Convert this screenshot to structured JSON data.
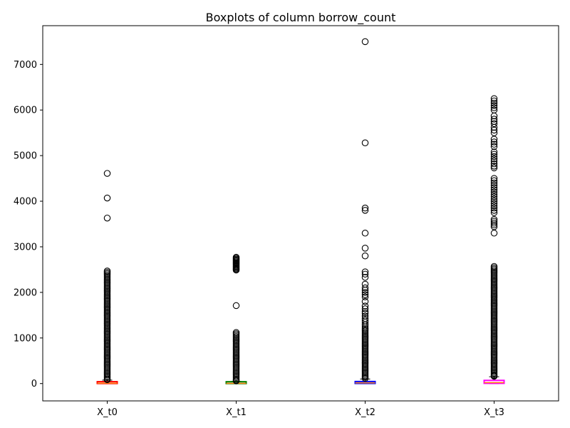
{
  "chart_data": {
    "type": "box",
    "title": "Boxplots of column borrow_count",
    "xlabel": "",
    "ylabel": "",
    "categories": [
      "X_t0",
      "X_t1",
      "X_t2",
      "X_t3"
    ],
    "ylim": [
      -380,
      7850
    ],
    "yticks": [
      0,
      1000,
      2000,
      3000,
      4000,
      5000,
      6000,
      7000
    ],
    "grid": false,
    "boxes": [
      {
        "name": "X_t0",
        "color": "#ff0000",
        "min": 0,
        "q1": 2,
        "median": 10,
        "q3": 30,
        "max": 75,
        "outliers": [
          4610,
          4070,
          3630,
          2470,
          2440,
          2410,
          2380,
          2350,
          2320,
          2290,
          2260,
          2230,
          2200,
          2170,
          2140,
          2110,
          2080,
          2050,
          2020,
          1990,
          1960,
          1930,
          1900,
          1870,
          1840,
          1810,
          1780,
          1750,
          1720,
          1690,
          1660,
          1630,
          1600,
          1570,
          1540,
          1510,
          1480,
          1450,
          1420,
          1390,
          1360,
          1330,
          1300,
          1270,
          1240,
          1210,
          1180,
          1150,
          1120,
          1090,
          1060,
          1030,
          1000,
          970,
          940,
          910,
          880,
          850,
          820,
          790,
          760,
          730,
          700,
          670,
          640,
          610,
          580,
          550,
          520,
          490,
          460,
          430,
          400,
          370,
          340,
          310,
          280,
          250,
          220,
          190,
          160,
          130,
          100,
          85
        ]
      },
      {
        "name": "X_t1",
        "color": "#008000",
        "min": 0,
        "q1": 1,
        "median": 6,
        "q3": 22,
        "max": 50,
        "outliers": [
          2770,
          2750,
          2730,
          2710,
          2690,
          2670,
          2650,
          2630,
          2610,
          2590,
          2570,
          2550,
          2530,
          2510,
          2490,
          1710,
          1120,
          1090,
          1060,
          1030,
          1000,
          970,
          940,
          910,
          880,
          850,
          820,
          790,
          760,
          730,
          700,
          670,
          640,
          610,
          580,
          550,
          520,
          490,
          460,
          430,
          400,
          370,
          340,
          310,
          280,
          250,
          220,
          190,
          160,
          130,
          100,
          75,
          60
        ]
      },
      {
        "name": "X_t2",
        "color": "#0000ff",
        "min": 0,
        "q1": 3,
        "median": 15,
        "q3": 45,
        "max": 100,
        "outliers": [
          7500,
          5280,
          3850,
          3800,
          3300,
          2970,
          2800,
          2450,
          2400,
          2330,
          2180,
          2100,
          2050,
          2000,
          1950,
          1900,
          1800,
          1700,
          1640,
          1580,
          1540,
          1480,
          1430,
          1390,
          1350,
          1300,
          1260,
          1220,
          1190,
          1160,
          1130,
          1100,
          1070,
          1040,
          1010,
          980,
          950,
          920,
          890,
          860,
          830,
          800,
          770,
          740,
          710,
          680,
          650,
          620,
          590,
          560,
          530,
          500,
          470,
          440,
          410,
          380,
          350,
          320,
          290,
          260,
          230,
          200,
          170,
          140,
          115
        ]
      },
      {
        "name": "X_t3",
        "color": "#ff00ff",
        "min": 0,
        "q1": 5,
        "median": 20,
        "q3": 70,
        "max": 150,
        "outliers": [
          6250,
          6200,
          6150,
          6100,
          6050,
          6000,
          5870,
          5800,
          5750,
          5700,
          5620,
          5560,
          5500,
          5360,
          5300,
          5250,
          5200,
          5080,
          5030,
          4980,
          4930,
          4880,
          4820,
          4770,
          4730,
          4500,
          4450,
          4400,
          4350,
          4300,
          4250,
          4200,
          4150,
          4100,
          4050,
          4000,
          3950,
          3900,
          3850,
          3800,
          3750,
          3600,
          3560,
          3520,
          3480,
          3440,
          3300,
          2570,
          2540,
          2510,
          2480,
          2450,
          2420,
          2390,
          2360,
          2330,
          2300,
          2270,
          2240,
          2210,
          2180,
          2150,
          2120,
          2090,
          2060,
          2030,
          2000,
          1970,
          1940,
          1910,
          1880,
          1850,
          1820,
          1790,
          1760,
          1730,
          1700,
          1670,
          1640,
          1610,
          1580,
          1550,
          1520,
          1490,
          1460,
          1430,
          1400,
          1370,
          1340,
          1310,
          1280,
          1250,
          1220,
          1190,
          1160,
          1130,
          1100,
          1070,
          1040,
          1010,
          980,
          950,
          920,
          890,
          860,
          830,
          800,
          770,
          740,
          710,
          680,
          650,
          620,
          590,
          560,
          530,
          500,
          470,
          440,
          410,
          380,
          350,
          320,
          290,
          260,
          230,
          200,
          175,
          160
        ]
      }
    ]
  }
}
